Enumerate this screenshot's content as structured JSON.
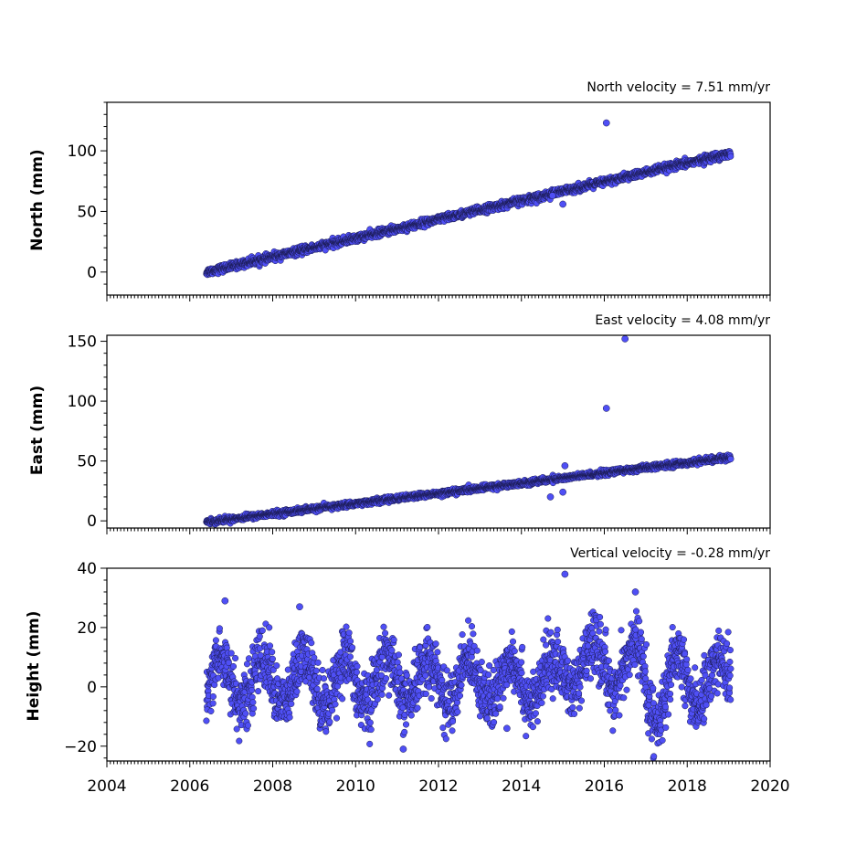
{
  "chart_data": [
    {
      "type": "scatter",
      "title": "North velocity = 7.51 mm/yr",
      "ylabel": "North (mm)",
      "xlim": [
        2004,
        2020
      ],
      "ylim": [
        -19,
        140
      ],
      "yticks": [
        0,
        50,
        100
      ],
      "ytick_labels": [
        "0",
        "50",
        "100"
      ],
      "model": "linear",
      "start": [
        2006.4,
        0
      ],
      "end": [
        2019.05,
        98
      ],
      "noise_mm": 2.5,
      "outliers": [
        [
          2016.05,
          123
        ],
        [
          2015.0,
          56
        ],
        [
          2014.75,
          63
        ]
      ],
      "marker_color": "#4f4ff5"
    },
    {
      "type": "scatter",
      "title": "East velocity = 4.08 mm/yr",
      "ylabel": "East (mm)",
      "xlim": [
        2004,
        2020
      ],
      "ylim": [
        -6,
        155
      ],
      "yticks": [
        0,
        50,
        100,
        150
      ],
      "ytick_labels": [
        "0",
        "50",
        "100",
        "150"
      ],
      "model": "linear",
      "start": [
        2006.4,
        -1
      ],
      "end": [
        2019.05,
        53
      ],
      "noise_mm": 1.8,
      "outliers": [
        [
          2016.05,
          94
        ],
        [
          2016.5,
          152
        ],
        [
          2015.05,
          46
        ],
        [
          2014.7,
          20
        ],
        [
          2015.0,
          24
        ]
      ],
      "marker_color": "#4f4ff5"
    },
    {
      "type": "scatter",
      "title": "Vertical velocity = -0.28 mm/yr",
      "ylabel": "Height (mm)",
      "xlabel": "",
      "xlim": [
        2004,
        2020
      ],
      "ylim": [
        -25,
        40
      ],
      "yticks": [
        -20,
        0,
        20,
        40
      ],
      "ytick_labels": [
        "−20",
        "0",
        "20",
        "40"
      ],
      "xticks": [
        2004,
        2006,
        2008,
        2010,
        2012,
        2014,
        2016,
        2018,
        2020
      ],
      "xtick_labels": [
        "2004",
        "2006",
        "2008",
        "2010",
        "2012",
        "2014",
        "2016",
        "2018",
        "2020"
      ],
      "model": "seasonal",
      "start": [
        2006.4,
        2
      ],
      "end": [
        2019.05,
        2
      ],
      "amplitude_mm": 8,
      "noise_mm": 5,
      "outliers": [
        [
          2015.05,
          38
        ],
        [
          2011.15,
          -21
        ],
        [
          2016.75,
          32
        ],
        [
          2006.85,
          29
        ],
        [
          2008.65,
          27
        ],
        [
          2013.65,
          -14
        ]
      ],
      "marker_color": "#4f4ff5"
    }
  ]
}
